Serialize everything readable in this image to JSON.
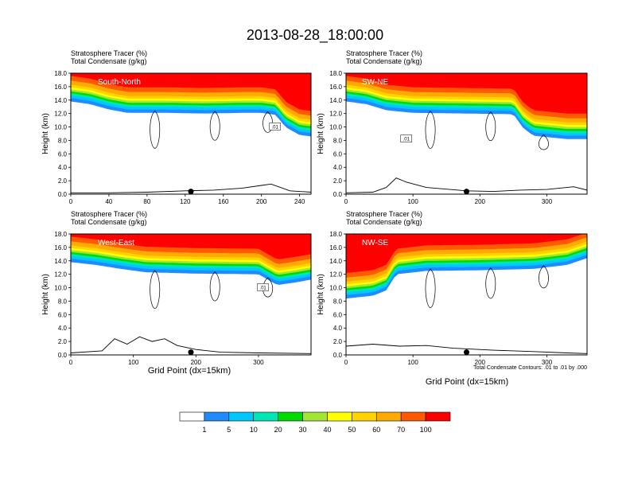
{
  "figure": {
    "main_title": "2013-08-28_18:00:00",
    "x_axis_label": "Grid Point (dx=15km)",
    "contour_note": "Total Condensate Contours: .01 to .01 by .000"
  },
  "colors": {
    "bins": [
      "#ffffff",
      "#1e8cff",
      "#00c8ff",
      "#00e6b4",
      "#00dc00",
      "#a0e632",
      "#ffff00",
      "#ffd200",
      "#ffaa00",
      "#ff5a00",
      "#ff0000"
    ],
    "contour": "#000000",
    "terrain": "#000000"
  },
  "colorbar": {
    "labels": [
      "1",
      "5",
      "10",
      "20",
      "30",
      "40",
      "50",
      "60",
      "70",
      "100"
    ]
  },
  "chart_data": [
    {
      "type": "contour-cross-section",
      "panel": "south-north",
      "title_line1": "Stratosphere Tracer   (%)",
      "title_line2": "Total Condensate   (g/kg)",
      "label": "South-North",
      "contour_label": ".01",
      "ylabel": "Height (km)",
      "xlim": [
        0,
        252
      ],
      "ylim": [
        0,
        18
      ],
      "xticks": [
        "0",
        "40",
        "80",
        "120",
        "160",
        "200",
        "240"
      ],
      "xtick_values": [
        0,
        40,
        80,
        120,
        160,
        200,
        240
      ],
      "yticks": [
        "0.0",
        "2.0",
        "4.0",
        "6.0",
        "8.0",
        "10.0",
        "12.0",
        "14.0",
        "16.0",
        "18.0"
      ],
      "ytick_values": [
        0,
        2,
        4,
        6,
        8,
        10,
        12,
        14,
        16,
        18
      ],
      "tropopause_km": [
        [
          0,
          14.6
        ],
        [
          20,
          14.2
        ],
        [
          40,
          13.4
        ],
        [
          60,
          12.9
        ],
        [
          100,
          12.9
        ],
        [
          140,
          12.8
        ],
        [
          180,
          12.9
        ],
        [
          200,
          12.9
        ],
        [
          215,
          12.6
        ],
        [
          225,
          10.8
        ],
        [
          240,
          9.6
        ],
        [
          252,
          9.4
        ]
      ],
      "terrain_km": [
        [
          0,
          0.2
        ],
        [
          40,
          0.2
        ],
        [
          80,
          0.3
        ],
        [
          120,
          0.5
        ],
        [
          150,
          0.6
        ],
        [
          180,
          0.9
        ],
        [
          200,
          1.3
        ],
        [
          210,
          1.5
        ],
        [
          230,
          0.5
        ],
        [
          252,
          0.3
        ]
      ],
      "marker_x": 126
    },
    {
      "type": "contour-cross-section",
      "panel": "sw-ne",
      "title_line1": "Stratosphere Tracer   (%)",
      "title_line2": "Total Condensate   (g/kg)",
      "label": "SW-NE",
      "contour_label": ".01",
      "ylabel": "Height (km)",
      "xlim": [
        0,
        360
      ],
      "ylim": [
        0,
        18
      ],
      "xticks": [
        "0",
        "100",
        "200",
        "300"
      ],
      "xtick_values": [
        0,
        100,
        200,
        300
      ],
      "yticks": [
        "0.0",
        "2.0",
        "4.0",
        "6.0",
        "8.0",
        "10.0",
        "12.0",
        "14.0",
        "16.0",
        "18.0"
      ],
      "ytick_values": [
        0,
        2,
        4,
        6,
        8,
        10,
        12,
        14,
        16,
        18
      ],
      "tropopause_km": [
        [
          0,
          14.6
        ],
        [
          30,
          14.2
        ],
        [
          60,
          13.3
        ],
        [
          100,
          12.9
        ],
        [
          180,
          12.8
        ],
        [
          250,
          12.7
        ],
        [
          265,
          10.6
        ],
        [
          280,
          9.5
        ],
        [
          300,
          9.3
        ],
        [
          330,
          9.0
        ],
        [
          360,
          9.0
        ]
      ],
      "terrain_km": [
        [
          0,
          0.2
        ],
        [
          40,
          0.3
        ],
        [
          60,
          1.0
        ],
        [
          75,
          2.4
        ],
        [
          90,
          1.8
        ],
        [
          120,
          1.0
        ],
        [
          180,
          0.5
        ],
        [
          220,
          0.4
        ],
        [
          260,
          0.6
        ],
        [
          300,
          0.7
        ],
        [
          340,
          1.1
        ],
        [
          360,
          0.6
        ]
      ],
      "marker_x": 180
    },
    {
      "type": "contour-cross-section",
      "panel": "west-east",
      "title_line1": "Stratosphere Tracer   (%)",
      "title_line2": "Total Condensate   (g/kg)",
      "label": "West-East",
      "contour_label": ".01",
      "ylabel": "Height (km)",
      "xlim": [
        0,
        384
      ],
      "ylim": [
        0,
        18
      ],
      "xticks": [
        "0",
        "100",
        "200",
        "300"
      ],
      "xtick_values": [
        0,
        100,
        200,
        300
      ],
      "yticks": [
        "0.0",
        "2.0",
        "4.0",
        "6.0",
        "8.0",
        "10.0",
        "12.0",
        "14.0",
        "16.0",
        "18.0"
      ],
      "ytick_values": [
        0,
        2,
        4,
        6,
        8,
        10,
        12,
        14,
        16,
        18
      ],
      "tropopause_km": [
        [
          0,
          14.6
        ],
        [
          40,
          14.2
        ],
        [
          80,
          13.6
        ],
        [
          120,
          13.1
        ],
        [
          200,
          12.9
        ],
        [
          300,
          12.8
        ],
        [
          330,
          11.2
        ],
        [
          360,
          11.6
        ],
        [
          384,
          12.0
        ]
      ],
      "terrain_km": [
        [
          0,
          0.3
        ],
        [
          50,
          0.6
        ],
        [
          70,
          2.4
        ],
        [
          90,
          1.6
        ],
        [
          110,
          2.7
        ],
        [
          130,
          2.0
        ],
        [
          150,
          2.4
        ],
        [
          170,
          1.4
        ],
        [
          200,
          0.8
        ],
        [
          240,
          0.4
        ],
        [
          300,
          0.3
        ],
        [
          384,
          0.2
        ]
      ],
      "marker_x": 192
    },
    {
      "type": "contour-cross-section",
      "panel": "nw-se",
      "title_line1": "Stratosphere Tracer   (%)",
      "title_line2": "Total Condensate   (g/kg)",
      "label": "NW-SE",
      "contour_label": "",
      "ylabel": "Height (km)",
      "xlim": [
        0,
        360
      ],
      "ylim": [
        0,
        18
      ],
      "xticks": [
        "0",
        "100",
        "200",
        "300"
      ],
      "xtick_values": [
        0,
        100,
        200,
        300
      ],
      "yticks": [
        "0.0",
        "2.0",
        "4.0",
        "6.0",
        "8.0",
        "10.0",
        "12.0",
        "14.0",
        "16.0",
        "18.0"
      ],
      "ytick_values": [
        0,
        2,
        4,
        6,
        8,
        10,
        12,
        14,
        16,
        18
      ],
      "tropopause_km": [
        [
          0,
          9.2
        ],
        [
          40,
          9.6
        ],
        [
          60,
          10.4
        ],
        [
          75,
          12.8
        ],
        [
          120,
          13.3
        ],
        [
          200,
          13.4
        ],
        [
          280,
          13.6
        ],
        [
          330,
          14.2
        ],
        [
          360,
          15.2
        ]
      ],
      "terrain_km": [
        [
          0,
          1.3
        ],
        [
          40,
          1.6
        ],
        [
          80,
          1.3
        ],
        [
          120,
          1.4
        ],
        [
          160,
          1.0
        ],
        [
          220,
          0.7
        ],
        [
          280,
          0.5
        ],
        [
          330,
          0.3
        ],
        [
          360,
          0.2
        ]
      ],
      "marker_x": 180
    }
  ]
}
